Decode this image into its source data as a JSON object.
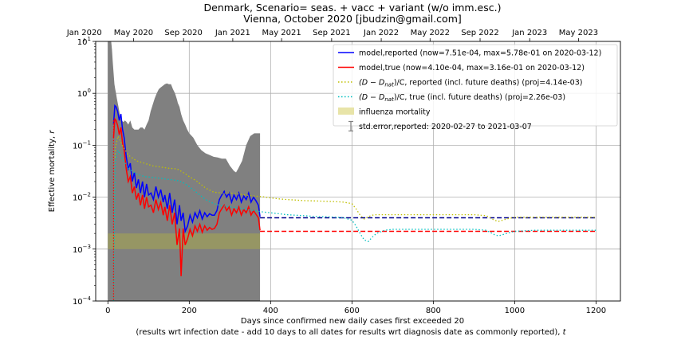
{
  "chart_data": {
    "type": "line",
    "title": "Denmark, Scenario= seas. + vacc + variant (w/o imm.esc.)",
    "subtitle": "Vienna, October 2020 [jbudzin@gmail.com]",
    "xlabel": "Days since confirmed new daily cases first exceeded 20",
    "xlabel2": "(results wrt infection date - add 10 days to all dates for results wrt diagnosis date as commonly reported),",
    "xlabel2_var": "t",
    "ylabel": "Effective mortality,",
    "ylabel_var": "r",
    "xlim": [
      -30,
      1260
    ],
    "ylim": [
      0.0001,
      10
    ],
    "yscale": "log",
    "grid": true,
    "x_ticks": [
      0,
      200,
      400,
      600,
      800,
      1000,
      1200
    ],
    "x_tick_labels": [
      "0",
      "200",
      "400",
      "600",
      "800",
      "1000",
      "1200"
    ],
    "y_ticks": [
      0.0001,
      0.001,
      0.01,
      0.1,
      1,
      10
    ],
    "y_tick_labels": [
      {
        "base": "10",
        "exp": "−4"
      },
      {
        "base": "10",
        "exp": "−3"
      },
      {
        "base": "10",
        "exp": "−2"
      },
      {
        "base": "10",
        "exp": "−1"
      },
      {
        "base": "10",
        "exp": "0"
      },
      {
        "base": "10",
        "exp": "1"
      }
    ],
    "top_axis_ticks": [
      {
        "x": -58,
        "label": "Jan 2020"
      },
      {
        "x": 63,
        "label": "May 2020"
      },
      {
        "x": 186,
        "label": "Sep 2020"
      },
      {
        "x": 307,
        "label": "Jan 2021"
      },
      {
        "x": 427,
        "label": "May 2021"
      },
      {
        "x": 550,
        "label": "Sep 2021"
      },
      {
        "x": 672,
        "label": "Jan 2022"
      },
      {
        "x": 792,
        "label": "May 2022"
      },
      {
        "x": 915,
        "label": "Sep 2022"
      },
      {
        "x": 1037,
        "label": "Jan 2023"
      },
      {
        "x": 1157,
        "label": "May 2023"
      }
    ],
    "legend_position": "upper right",
    "legend": [
      {
        "label": "model,reported (now=7.51e-04, max=5.78e-01 on 2020-03-12)",
        "style": "solid",
        "color": "#0000ff"
      },
      {
        "label": "model,true (now=4.10e-04, max=3.16e-01 on 2020-03-12)",
        "style": "solid",
        "color": "#ff0000"
      },
      {
        "label": "(D − D",
        "label_sub": "nat",
        "label_tail": ")/C, reported (incl. future deaths) (proj=4.14e-03)",
        "style": "dotted",
        "color": "#bfbf00"
      },
      {
        "label": "(D − D",
        "label_sub": "nat",
        "label_tail": ")/C, true (incl. future deaths) (proj=2.26e-03)",
        "style": "dotted",
        "color": "#00bfbf"
      },
      {
        "label": "influenza mortality",
        "style": "band",
        "color": "#e8e4a8"
      },
      {
        "label": "std.error,reported: 2020-02-27 to 2021-03-07",
        "style": "errorbar",
        "color": "#808080"
      }
    ],
    "influenza_band": [
      0.001,
      0.002
    ],
    "series": [
      {
        "name": "model,reported",
        "color": "#0000ff",
        "style": "solid",
        "x": [
          14,
          17,
          20,
          24,
          28,
          32,
          36,
          40,
          45,
          50,
          55,
          60,
          65,
          70,
          75,
          80,
          85,
          90,
          95,
          100,
          106,
          112,
          118,
          124,
          130,
          136,
          140,
          146,
          152,
          158,
          164,
          170,
          176,
          180,
          185,
          190,
          196,
          202,
          208,
          214,
          220,
          226,
          232,
          238,
          244,
          250,
          256,
          262,
          268,
          274,
          280,
          286,
          292,
          298,
          304,
          310,
          316,
          322,
          328,
          334,
          340,
          346,
          352,
          358,
          364,
          370,
          374
        ],
        "y": [
          0.25,
          0.58,
          0.55,
          0.45,
          0.3,
          0.4,
          0.2,
          0.14,
          0.06,
          0.035,
          0.045,
          0.02,
          0.03,
          0.015,
          0.022,
          0.012,
          0.02,
          0.01,
          0.018,
          0.011,
          0.012,
          0.009,
          0.016,
          0.01,
          0.014,
          0.008,
          0.011,
          0.006,
          0.012,
          0.005,
          0.009,
          0.003,
          0.007,
          0.0035,
          0.005,
          0.0022,
          0.0028,
          0.0045,
          0.0033,
          0.005,
          0.004,
          0.0055,
          0.0038,
          0.005,
          0.0042,
          0.0048,
          0.0045,
          0.0045,
          0.0055,
          0.009,
          0.011,
          0.013,
          0.01,
          0.012,
          0.008,
          0.011,
          0.009,
          0.012,
          0.008,
          0.0105,
          0.009,
          0.012,
          0.008,
          0.01,
          0.0085,
          0.007,
          0.0042
        ]
      },
      {
        "name": "model,true",
        "color": "#ff0000",
        "style": "solid",
        "x": [
          14,
          17,
          20,
          24,
          28,
          32,
          36,
          40,
          45,
          50,
          55,
          60,
          65,
          70,
          75,
          80,
          85,
          90,
          95,
          100,
          106,
          112,
          118,
          124,
          130,
          136,
          140,
          146,
          152,
          158,
          164,
          170,
          176,
          180,
          185,
          190,
          196,
          202,
          208,
          214,
          220,
          226,
          232,
          238,
          244,
          250,
          256,
          262,
          268,
          274,
          280,
          286,
          292,
          298,
          304,
          310,
          316,
          322,
          328,
          334,
          340,
          346,
          352,
          358,
          364,
          370,
          374
        ],
        "y": [
          0.14,
          0.32,
          0.3,
          0.24,
          0.16,
          0.22,
          0.11,
          0.08,
          0.035,
          0.02,
          0.025,
          0.012,
          0.016,
          0.009,
          0.012,
          0.007,
          0.011,
          0.006,
          0.01,
          0.0065,
          0.007,
          0.005,
          0.009,
          0.0058,
          0.008,
          0.0045,
          0.0065,
          0.0035,
          0.007,
          0.003,
          0.005,
          0.0012,
          0.0025,
          0.0003,
          0.0025,
          0.0012,
          0.0016,
          0.0024,
          0.0018,
          0.0028,
          0.0022,
          0.003,
          0.0021,
          0.0028,
          0.0023,
          0.0026,
          0.0024,
          0.0025,
          0.003,
          0.005,
          0.006,
          0.007,
          0.0055,
          0.0065,
          0.0045,
          0.006,
          0.005,
          0.0065,
          0.0045,
          0.0058,
          0.005,
          0.0065,
          0.0045,
          0.0055,
          0.0047,
          0.004,
          0.0023
        ]
      },
      {
        "name": "model,reported projection",
        "color": "#00008b",
        "style": "dashed",
        "x": [
          374,
          1200
        ],
        "y": [
          0.004,
          0.004
        ]
      },
      {
        "name": "model,true projection",
        "color": "#ff0000",
        "style": "dashed",
        "x": [
          374,
          1200
        ],
        "y": [
          0.0022,
          0.0022
        ]
      },
      {
        "name": "(D-Dnat)/C, reported",
        "color": "#bfbf00",
        "style": "dotted",
        "x": [
          14,
          18,
          25,
          35,
          50,
          70,
          90,
          110,
          130,
          150,
          170,
          185,
          200,
          220,
          240,
          260,
          280,
          300,
          320,
          340,
          360,
          380,
          400,
          420,
          440,
          460,
          480,
          500,
          520,
          540,
          560,
          580,
          600,
          610,
          620,
          630,
          640,
          650,
          660,
          680,
          700,
          750,
          800,
          850,
          900,
          930,
          950,
          960,
          980,
          1000,
          1050,
          1100,
          1150,
          1200
        ],
        "y": [
          0.0001,
          0.09,
          0.15,
          0.1,
          0.065,
          0.05,
          0.045,
          0.04,
          0.038,
          0.036,
          0.035,
          0.03,
          0.025,
          0.02,
          0.015,
          0.0125,
          0.012,
          0.012,
          0.0115,
          0.011,
          0.0105,
          0.0102,
          0.0097,
          0.0093,
          0.009,
          0.0088,
          0.0086,
          0.0085,
          0.0084,
          0.0083,
          0.0082,
          0.008,
          0.0075,
          0.006,
          0.0045,
          0.0038,
          0.0042,
          0.0045,
          0.0046,
          0.0046,
          0.0046,
          0.0046,
          0.0046,
          0.0046,
          0.0046,
          0.0044,
          0.0036,
          0.0034,
          0.0038,
          0.0041,
          0.0041,
          0.0041,
          0.0041,
          0.0041
        ]
      },
      {
        "name": "(D-Dnat)/C, true",
        "color": "#00bfbf",
        "style": "dotted",
        "x": [
          14,
          18,
          25,
          35,
          50,
          70,
          90,
          110,
          130,
          150,
          170,
          185,
          200,
          220,
          240,
          260,
          280,
          300,
          320,
          340,
          360,
          380,
          400,
          420,
          440,
          460,
          480,
          500,
          520,
          540,
          560,
          580,
          600,
          610,
          620,
          630,
          640,
          650,
          660,
          680,
          700,
          750,
          800,
          850,
          900,
          930,
          950,
          960,
          980,
          1000,
          1050,
          1100,
          1150,
          1200
        ],
        "y": [
          0.0001,
          0.05,
          0.08,
          0.055,
          0.036,
          0.028,
          0.025,
          0.024,
          0.023,
          0.022,
          0.021,
          0.019,
          0.016,
          0.012,
          0.009,
          0.0075,
          0.0068,
          0.0065,
          0.0062,
          0.0058,
          0.0055,
          0.0052,
          0.005,
          0.0048,
          0.0046,
          0.0045,
          0.0044,
          0.0043,
          0.0042,
          0.0042,
          0.0041,
          0.004,
          0.0036,
          0.0028,
          0.002,
          0.0015,
          0.0014,
          0.0017,
          0.002,
          0.0023,
          0.0024,
          0.0024,
          0.0024,
          0.0024,
          0.0024,
          0.0023,
          0.0019,
          0.0018,
          0.002,
          0.0022,
          0.0023,
          0.0023,
          0.0023,
          0.0023
        ]
      }
    ],
    "std_error_envelope": {
      "name": "std.error,reported",
      "color": "#808080",
      "x": [
        0,
        4,
        8,
        10,
        12,
        14,
        16,
        18,
        20,
        22,
        25,
        28,
        30,
        34,
        38,
        42,
        46,
        50,
        55,
        60,
        65,
        70,
        75,
        80,
        85,
        90,
        95,
        100,
        105,
        110,
        115,
        120,
        125,
        130,
        135,
        140,
        145,
        150,
        155,
        160,
        165,
        170,
        172,
        176,
        180,
        185,
        190,
        195,
        200,
        210,
        220,
        230,
        240,
        250,
        260,
        270,
        280,
        290,
        300,
        310,
        315,
        320,
        330,
        340,
        350,
        360,
        370,
        374
      ],
      "upper": [
        10,
        10,
        10,
        7,
        4,
        2.5,
        1.5,
        1.2,
        1.0,
        0.8,
        0.6,
        0.45,
        0.35,
        0.3,
        0.28,
        0.3,
        0.28,
        0.25,
        0.3,
        0.22,
        0.2,
        0.2,
        0.2,
        0.22,
        0.22,
        0.2,
        0.25,
        0.3,
        0.45,
        0.6,
        0.8,
        1.0,
        1.2,
        1.3,
        1.4,
        1.5,
        1.55,
        1.5,
        1.5,
        1.2,
        1.0,
        0.75,
        0.65,
        0.55,
        0.4,
        0.3,
        0.25,
        0.2,
        0.17,
        0.14,
        0.1,
        0.08,
        0.07,
        0.065,
        0.06,
        0.058,
        0.055,
        0.055,
        0.04,
        0.032,
        0.03,
        0.035,
        0.05,
        0.1,
        0.15,
        0.17,
        0.17,
        0.17
      ],
      "lower": 0.0001
    }
  }
}
